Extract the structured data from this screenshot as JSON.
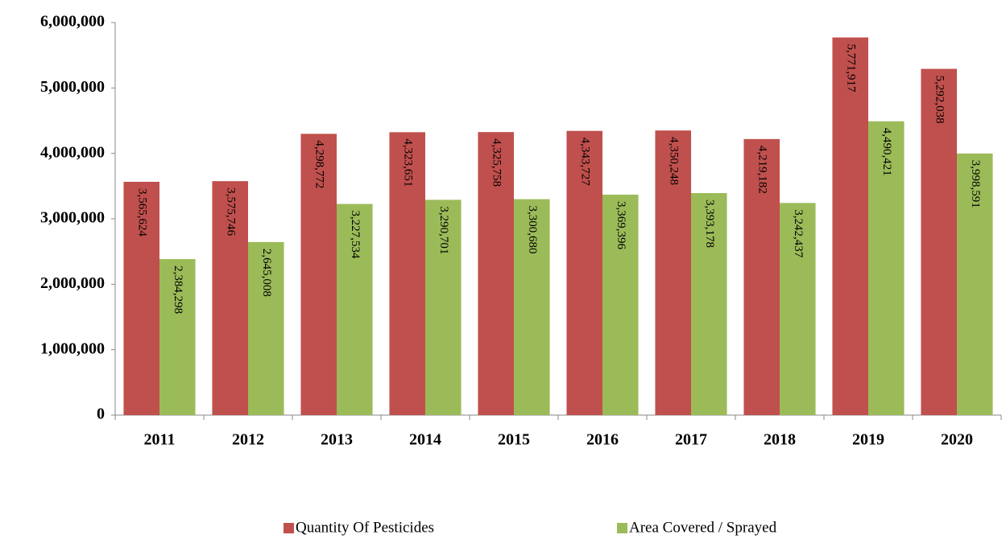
{
  "chart_data": {
    "type": "bar",
    "categories": [
      "2011",
      "2012",
      "2013",
      "2014",
      "2015",
      "2016",
      "2017",
      "2018",
      "2019",
      "2020"
    ],
    "series": [
      {
        "name": "Quantity Of Pesticides",
        "color": "#c0504d",
        "values": [
          3565624,
          3575746,
          4298772,
          4323651,
          4325758,
          4343727,
          4350248,
          4219182,
          5771917,
          5292038
        ],
        "value_labels": [
          "3,565,624",
          "3,575,746",
          "4,298,772",
          "4,323,651",
          "4,325,758",
          "4,343,727",
          "4,350,248",
          "4,219,182",
          "5,771,917",
          "5,292,038"
        ]
      },
      {
        "name": "Area Covered / Sprayed",
        "color": "#9bbb59",
        "values": [
          2384298,
          2645008,
          3227534,
          3290701,
          3300680,
          3369396,
          3393178,
          3242437,
          4490421,
          3998591
        ],
        "value_labels": [
          "2,384,298",
          "2,645,008",
          "3,227,534",
          "3,290,701",
          "3,300,680",
          "3,369,396",
          "3,393,178",
          "3,242,437",
          "4,490,421",
          "3,998,591"
        ]
      }
    ],
    "ylim": [
      0,
      6000000
    ],
    "yticks": [
      {
        "value": 0,
        "label": "0"
      },
      {
        "value": 1000000,
        "label": "1,000,000"
      },
      {
        "value": 2000000,
        "label": "2,000,000"
      },
      {
        "value": 3000000,
        "label": "3,000,000"
      },
      {
        "value": 4000000,
        "label": "4,000,000"
      },
      {
        "value": 5000000,
        "label": "5,000,000"
      },
      {
        "value": 6000000,
        "label": "6,000,000"
      }
    ],
    "grid": false,
    "legend": "bottom"
  }
}
